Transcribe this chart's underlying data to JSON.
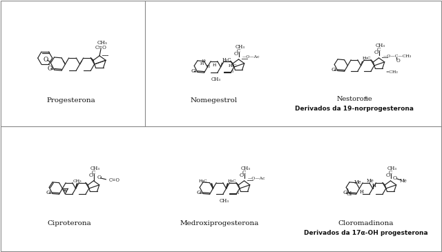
{
  "background_color": "#ffffff",
  "border_color": "#aaaaaa",
  "text_color": "#111111",
  "bold_color": "#000000",
  "line_color": "#222222",
  "top_left_label": "Progesterona",
  "top_mid_label": "Nomegestrol",
  "top_right_label": "Nestorone",
  "top_right_group": "Derivados da 19-norprogesterona",
  "bot_left_label": "Ciproterona",
  "bot_mid_label": "Medroxiprogesterona",
  "bot_right_label": "Cloromadinona",
  "bot_right_group": "Derivados da 17α-OH progesterona"
}
